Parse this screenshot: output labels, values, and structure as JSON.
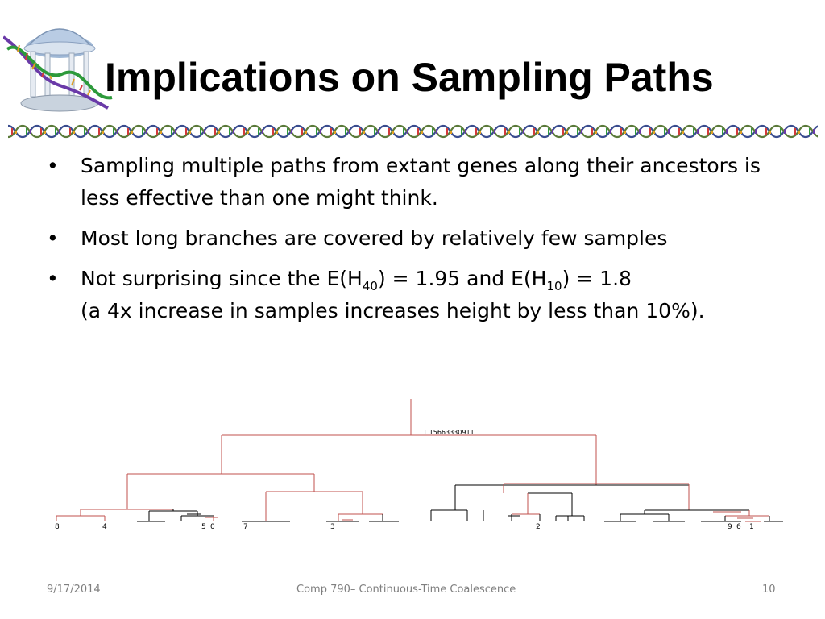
{
  "slide": {
    "title": "Implications on Sampling Paths",
    "bullets": [
      {
        "text": "Sampling multiple paths from extant genes along their ancestors is less effective than one might think."
      },
      {
        "text": "Most long branches are covered by relatively few samples"
      },
      {
        "prefix": "Not surprising since the E(H",
        "sub1": "40",
        "mid": ") = 1.95 and E(H",
        "sub2": "10",
        "suffix": ") = 1.8",
        "line2": "(a 4x increase in samples increases height by less than 10%)."
      }
    ]
  },
  "tree": {
    "root_height_label": "1.15663330911",
    "leaf_labels": [
      "8",
      "4",
      "5",
      "0",
      "7",
      "3",
      "2",
      "9",
      "6",
      "1"
    ],
    "colors": {
      "sampled": "#c0504d",
      "unsampled": "#000000"
    }
  },
  "footer": {
    "date": "9/17/2014",
    "course": "Comp 790– Continuous-Time Coalescence",
    "page": "10"
  },
  "colors": {
    "footer_text": "#7f7f7f",
    "title": "#000000"
  },
  "icons": {
    "logo": "old-well-dna-logo-icon",
    "divider": "dna-strand-divider-icon"
  }
}
